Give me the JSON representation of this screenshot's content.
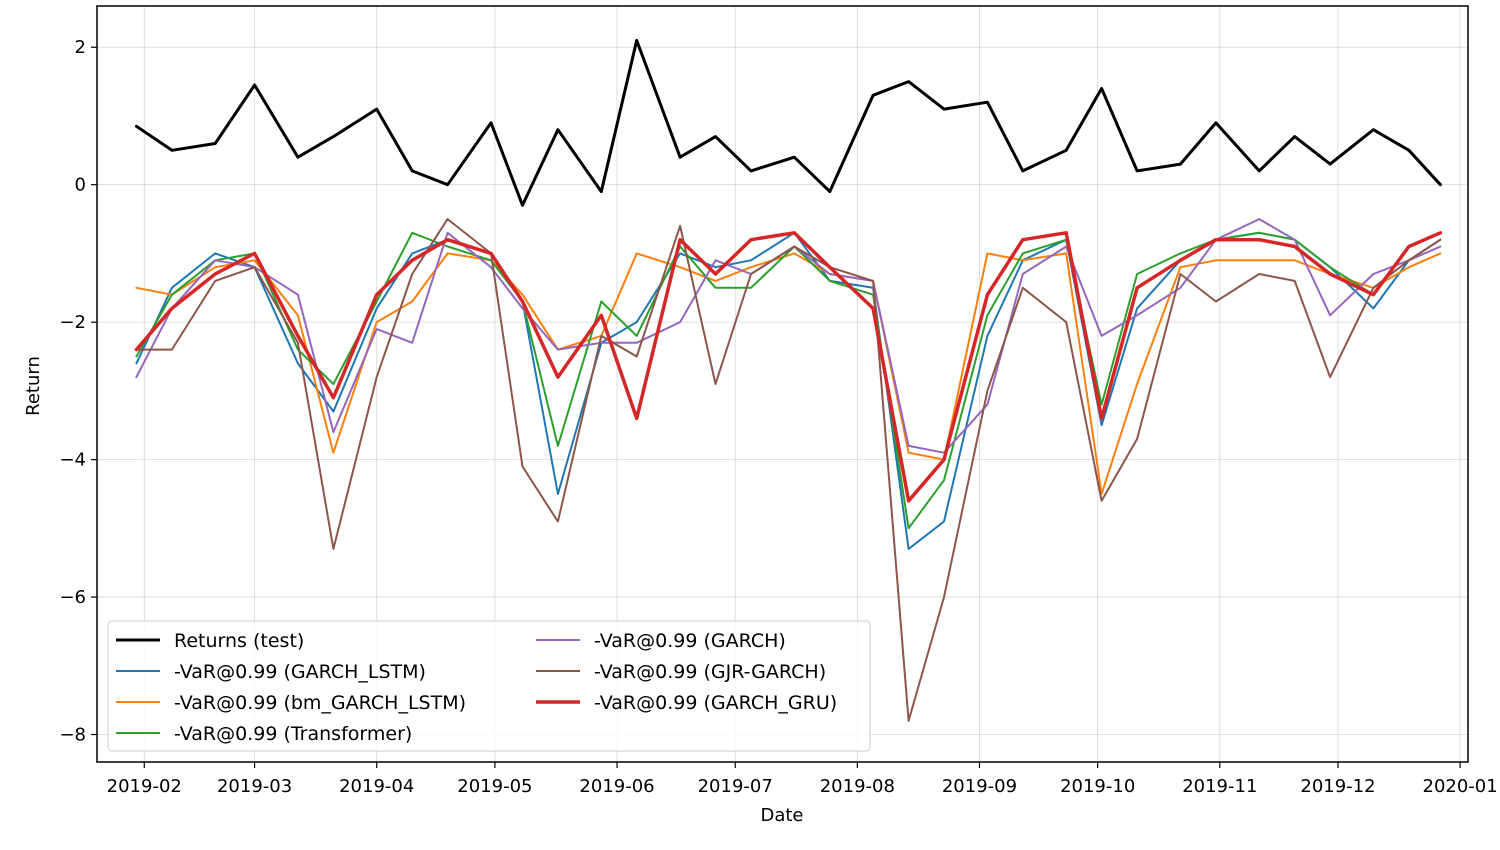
{
  "chart_data": {
    "type": "line",
    "xlabel": "Date",
    "ylabel": "Return",
    "xlim": [
      "2019-01-20",
      "2020-01-03"
    ],
    "ylim": [
      -8.4,
      2.6
    ],
    "grid": true,
    "legend_position": "lower-left",
    "x_ticks": [
      "2019-02",
      "2019-03",
      "2019-04",
      "2019-05",
      "2019-06",
      "2019-07",
      "2019-08",
      "2019-09",
      "2019-10",
      "2019-11",
      "2019-12",
      "2020-01"
    ],
    "y_ticks": [
      2,
      0,
      -2,
      -4,
      -6,
      -8
    ],
    "x": [
      "2019-01-30",
      "2019-02-08",
      "2019-02-19",
      "2019-03-01",
      "2019-03-12",
      "2019-03-21",
      "2019-04-01",
      "2019-04-10",
      "2019-04-19",
      "2019-04-30",
      "2019-05-08",
      "2019-05-17",
      "2019-05-28",
      "2019-06-06",
      "2019-06-17",
      "2019-06-26",
      "2019-07-05",
      "2019-07-16",
      "2019-07-25",
      "2019-08-05",
      "2019-08-14",
      "2019-08-23",
      "2019-09-03",
      "2019-09-12",
      "2019-09-23",
      "2019-10-02",
      "2019-10-11",
      "2019-10-22",
      "2019-10-31",
      "2019-11-11",
      "2019-11-20",
      "2019-11-29",
      "2019-12-10",
      "2019-12-19",
      "2019-12-27"
    ],
    "series": [
      {
        "name": "Returns (test)",
        "color": "#000000",
        "width": 3,
        "values": [
          0.85,
          0.5,
          0.6,
          1.45,
          0.4,
          0.7,
          1.1,
          0.2,
          0.0,
          0.9,
          -0.3,
          0.8,
          -0.1,
          2.1,
          0.4,
          0.7,
          0.2,
          0.4,
          -0.1,
          1.3,
          1.5,
          1.1,
          1.2,
          0.2,
          0.5,
          1.4,
          0.2,
          0.3,
          0.9,
          0.2,
          0.7,
          0.3,
          0.8,
          0.5,
          0.0
        ]
      },
      {
        "name": "-VaR@0.99 (GARCH_LSTM)",
        "color": "#1f77b4",
        "width": 2,
        "values": [
          -2.6,
          -1.5,
          -1.0,
          -1.2,
          -2.6,
          -3.3,
          -1.8,
          -1.0,
          -0.8,
          -1.0,
          -1.7,
          -4.5,
          -2.3,
          -2.0,
          -1.0,
          -1.2,
          -1.1,
          -0.7,
          -1.4,
          -1.5,
          -5.3,
          -4.9,
          -2.2,
          -1.1,
          -0.8,
          -3.5,
          -1.8,
          -1.1,
          -0.8,
          -0.7,
          -0.8,
          -1.2,
          -1.8,
          -1.1,
          -0.8
        ]
      },
      {
        "name": "-VaR@0.99 (bm_GARCH_LSTM)",
        "color": "#ff7f0e",
        "width": 2,
        "values": [
          -1.5,
          -1.6,
          -1.2,
          -1.1,
          -1.9,
          -3.9,
          -2.0,
          -1.7,
          -1.0,
          -1.1,
          -1.6,
          -2.4,
          -2.2,
          -1.0,
          -1.2,
          -1.4,
          -1.2,
          -1.0,
          -1.3,
          -1.4,
          -3.9,
          -4.0,
          -1.0,
          -1.1,
          -1.0,
          -4.5,
          -2.9,
          -1.2,
          -1.1,
          -1.1,
          -1.1,
          -1.3,
          -1.5,
          -1.2,
          -1.0
        ]
      },
      {
        "name": "-VaR@0.99 (Transformer)",
        "color": "#2ca02c",
        "width": 2,
        "values": [
          -2.5,
          -1.6,
          -1.1,
          -1.0,
          -2.4,
          -2.9,
          -1.7,
          -0.7,
          -0.9,
          -1.1,
          -1.7,
          -3.8,
          -1.7,
          -2.2,
          -0.9,
          -1.5,
          -1.5,
          -0.9,
          -1.4,
          -1.6,
          -5.0,
          -4.3,
          -1.9,
          -1.0,
          -0.8,
          -3.2,
          -1.3,
          -1.0,
          -0.8,
          -0.7,
          -0.8,
          -1.2,
          -1.6,
          -0.9,
          -0.7
        ]
      },
      {
        "name": "-VaR@0.99 (GARCH)",
        "color": "#9467bd",
        "width": 2,
        "values": [
          -2.8,
          -1.8,
          -1.1,
          -1.2,
          -1.6,
          -3.6,
          -2.1,
          -2.3,
          -0.7,
          -1.2,
          -1.8,
          -2.4,
          -2.3,
          -2.3,
          -2.0,
          -1.1,
          -1.3,
          -0.9,
          -1.3,
          -1.4,
          -3.8,
          -3.9,
          -3.2,
          -1.3,
          -0.9,
          -2.2,
          -1.9,
          -1.5,
          -0.8,
          -0.5,
          -0.8,
          -1.9,
          -1.3,
          -1.1,
          -0.9
        ]
      },
      {
        "name": "-VaR@0.99 (GJR-GARCH)",
        "color": "#8c564b",
        "width": 2,
        "values": [
          -2.4,
          -2.4,
          -1.4,
          -1.2,
          -2.3,
          -5.3,
          -2.8,
          -1.3,
          -0.5,
          -1.0,
          -4.1,
          -4.9,
          -2.2,
          -2.5,
          -0.6,
          -2.9,
          -1.3,
          -0.9,
          -1.2,
          -1.4,
          -7.8,
          -6.0,
          -3.0,
          -1.5,
          -2.0,
          -4.6,
          -3.7,
          -1.3,
          -1.7,
          -1.3,
          -1.4,
          -2.8,
          -1.5,
          -1.1,
          -0.8
        ]
      },
      {
        "name": "-VaR@0.99 (GARCH_GRU)",
        "color": "#d62728",
        "width": 3.5,
        "values": [
          -2.4,
          -1.8,
          -1.3,
          -1.0,
          -2.2,
          -3.1,
          -1.6,
          -1.1,
          -0.8,
          -1.0,
          -1.7,
          -2.8,
          -1.9,
          -3.4,
          -0.8,
          -1.3,
          -0.8,
          -0.7,
          -1.2,
          -1.8,
          -4.6,
          -4.0,
          -1.6,
          -0.8,
          -0.7,
          -3.4,
          -1.5,
          -1.1,
          -0.8,
          -0.8,
          -0.9,
          -1.3,
          -1.6,
          -0.9,
          -0.7
        ]
      }
    ]
  }
}
